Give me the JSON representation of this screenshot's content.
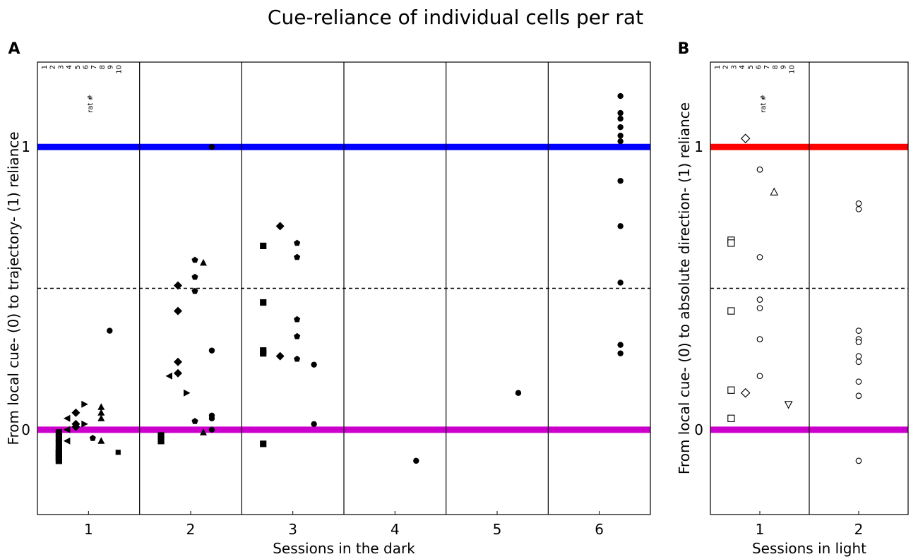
{
  "figure_title": "Cue-reliance of individual cells per rat",
  "chart_data": [
    {
      "panel_label": "A",
      "type": "scatter",
      "title": "",
      "xlabel": "Sessions in the dark",
      "ylabel": "From local cue- (0) to trajectory- (1) reliance",
      "categories": [
        "1",
        "2",
        "3",
        "4",
        "5",
        "6"
      ],
      "ylim": [
        -0.3,
        1.3
      ],
      "yticks": [
        "0",
        "1"
      ],
      "legend": {
        "title": "rat #",
        "entries": [
          "1",
          "2",
          "3",
          "4",
          "5",
          "6",
          "7",
          "8",
          "9",
          "10"
        ],
        "placement": "top-left",
        "filled": true
      },
      "reference_lines": [
        {
          "name": "upper",
          "y": 1,
          "color": "#0000ff",
          "style": "solid"
        },
        {
          "name": "lower",
          "y": 0,
          "color": "#cc00cc",
          "style": "solid"
        },
        {
          "name": "midline",
          "y": 0.5,
          "color": "#000000",
          "style": "dashed"
        }
      ],
      "series": [
        {
          "name": "rat 1",
          "marker": "square",
          "points": [
            [
              1,
              -0.01
            ],
            [
              1,
              -0.05
            ],
            [
              1,
              -0.07
            ],
            [
              1,
              -0.08
            ],
            [
              1,
              -0.09
            ],
            [
              1,
              -0.1
            ],
            [
              1,
              -0.11
            ],
            [
              1,
              -0.03
            ],
            [
              2,
              -0.02
            ],
            [
              2,
              -0.04
            ],
            [
              3,
              0.65
            ],
            [
              3,
              0.45
            ],
            [
              3,
              0.28
            ],
            [
              3,
              0.27
            ],
            [
              3,
              -0.05
            ]
          ]
        },
        {
          "name": "rat 2",
          "marker": "triangle-left",
          "points": [
            [
              1,
              0.04
            ],
            [
              1,
              -0.04
            ],
            [
              1,
              0.0
            ],
            [
              2,
              0.19
            ]
          ]
        },
        {
          "name": "rat 3",
          "marker": "diamond",
          "points": [
            [
              1,
              0.06
            ],
            [
              1,
              0.01
            ],
            [
              1,
              0.02
            ],
            [
              2,
              0.51
            ],
            [
              2,
              0.42
            ],
            [
              2,
              0.24
            ],
            [
              2,
              0.2
            ],
            [
              3,
              0.72
            ],
            [
              3,
              0.26
            ]
          ]
        },
        {
          "name": "rat 4",
          "marker": "triangle-right",
          "points": [
            [
              1,
              0.09
            ],
            [
              1,
              0.02
            ],
            [
              2,
              0.13
            ]
          ]
        },
        {
          "name": "rat 5",
          "marker": "pentagon",
          "points": [
            [
              1,
              -0.03
            ],
            [
              2,
              0.6
            ],
            [
              2,
              0.54
            ],
            [
              2,
              0.49
            ],
            [
              2,
              0.03
            ],
            [
              3,
              0.66
            ],
            [
              3,
              0.61
            ],
            [
              3,
              0.39
            ],
            [
              3,
              0.33
            ],
            [
              3,
              0.25
            ]
          ]
        },
        {
          "name": "rat 6",
          "marker": "triangle-up",
          "points": [
            [
              1,
              0.08
            ],
            [
              1,
              0.06
            ],
            [
              1,
              0.04
            ],
            [
              1,
              -0.04
            ],
            [
              2,
              0.59
            ],
            [
              2,
              -0.01
            ]
          ]
        },
        {
          "name": "rat 7",
          "marker": "circle",
          "points": [
            [
              1,
              0.35
            ],
            [
              2,
              0.28
            ],
            [
              2,
              0.05
            ],
            [
              2,
              0.04
            ],
            [
              2,
              0.0
            ],
            [
              2,
              1.0
            ],
            [
              3,
              0.02
            ],
            [
              3,
              0.23
            ],
            [
              4,
              -0.11
            ],
            [
              5,
              0.13
            ],
            [
              6,
              1.18
            ],
            [
              6,
              1.12
            ],
            [
              6,
              1.1
            ],
            [
              6,
              1.07
            ],
            [
              6,
              1.04
            ],
            [
              6,
              1.02
            ],
            [
              6,
              0.88
            ],
            [
              6,
              0.72
            ],
            [
              6,
              0.52
            ],
            [
              6,
              0.3
            ],
            [
              6,
              0.27
            ]
          ]
        },
        {
          "name": "rat 8",
          "marker": "square-small",
          "points": [
            [
              1,
              -0.08
            ]
          ]
        }
      ]
    },
    {
      "panel_label": "B",
      "type": "scatter",
      "title": "",
      "xlabel": "Sessions in light",
      "ylabel": "From local cue- (0) to absolute direction- (1) reliance",
      "categories": [
        "1",
        "2"
      ],
      "ylim": [
        -0.3,
        1.3
      ],
      "yticks": [
        "0",
        "1"
      ],
      "legend": {
        "title": "rat #",
        "entries": [
          "1",
          "2",
          "3",
          "4",
          "5",
          "6",
          "7",
          "8",
          "9",
          "10"
        ],
        "placement": "top-left",
        "filled": false
      },
      "reference_lines": [
        {
          "name": "upper",
          "y": 1,
          "color": "#ff0000",
          "style": "solid"
        },
        {
          "name": "lower",
          "y": 0,
          "color": "#cc00cc",
          "style": "solid"
        },
        {
          "name": "midline",
          "y": 0.5,
          "color": "#000000",
          "style": "dashed"
        }
      ],
      "series": [
        {
          "name": "rat 1",
          "marker": "square-open",
          "points": [
            [
              1,
              0.67
            ],
            [
              1,
              0.66
            ],
            [
              1,
              0.42
            ],
            [
              1,
              0.14
            ],
            [
              1,
              0.04
            ]
          ]
        },
        {
          "name": "rat 4",
          "marker": "diamond-open",
          "points": [
            [
              1,
              1.03
            ],
            [
              1,
              0.13
            ]
          ]
        },
        {
          "name": "rat 6",
          "marker": "circle-open",
          "points": [
            [
              1,
              0.92
            ],
            [
              1,
              0.61
            ],
            [
              1,
              0.46
            ],
            [
              1,
              0.43
            ],
            [
              1,
              0.32
            ],
            [
              1,
              0.19
            ],
            [
              2,
              0.8
            ],
            [
              2,
              0.78
            ],
            [
              2,
              0.35
            ],
            [
              2,
              0.32
            ],
            [
              2,
              0.31
            ],
            [
              2,
              0.26
            ],
            [
              2,
              0.24
            ],
            [
              2,
              0.17
            ],
            [
              2,
              0.12
            ],
            [
              2,
              -0.11
            ]
          ]
        },
        {
          "name": "rat 7",
          "marker": "triangle-up-open",
          "points": [
            [
              1,
              0.84
            ]
          ]
        },
        {
          "name": "rat 10",
          "marker": "triangle-down-open",
          "points": [
            [
              1,
              0.09
            ]
          ]
        }
      ]
    }
  ]
}
